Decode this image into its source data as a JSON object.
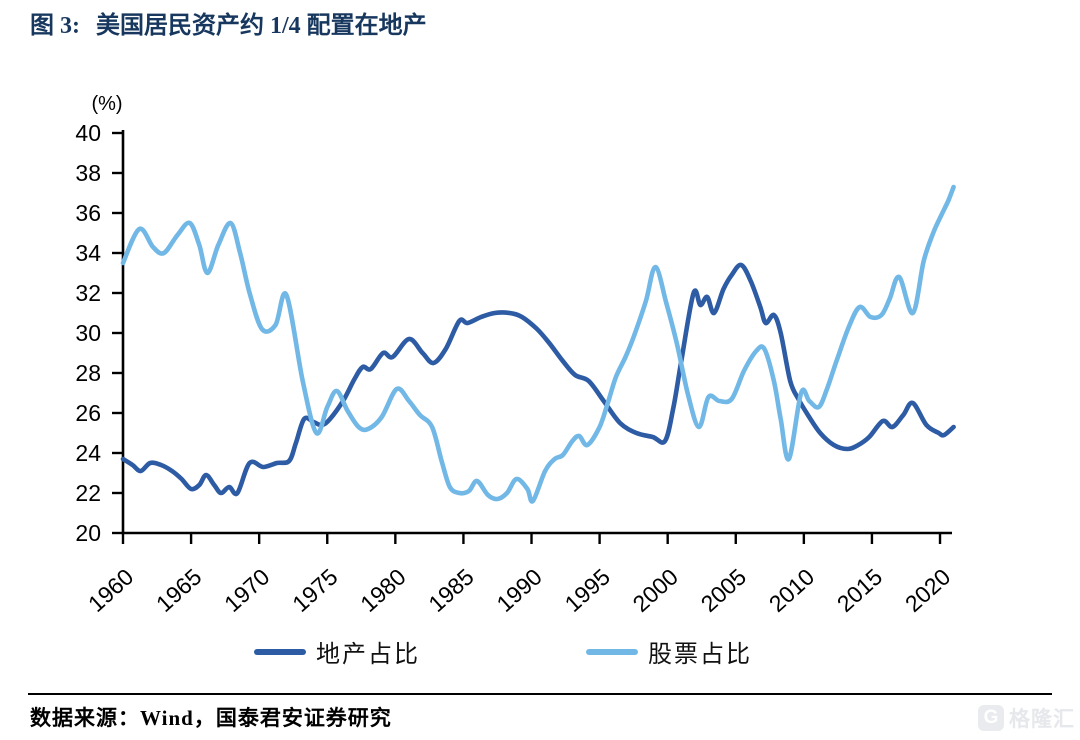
{
  "header": {
    "figure_label": "图 3:",
    "title": "美国居民资产约 1/4 配置在地产"
  },
  "footer": {
    "source": "数据来源：Wind，国泰君安证券研究",
    "watermark_icon": "G",
    "watermark": "格隆汇"
  },
  "chart_data": {
    "type": "line",
    "title": "图 3: 美国居民资产约 1/4 配置在地产",
    "unit_label": "(%)",
    "xlabel": "",
    "ylabel": "(%)",
    "x_range": [
      1960,
      2021
    ],
    "y_range": [
      20,
      40
    ],
    "x_ticks": [
      1960,
      1965,
      1970,
      1975,
      1980,
      1985,
      1990,
      1995,
      2000,
      2005,
      2010,
      2015,
      2020
    ],
    "y_ticks": [
      20,
      22,
      24,
      26,
      28,
      30,
      32,
      34,
      36,
      38,
      40
    ],
    "grid": false,
    "legend_position": "bottom",
    "series": [
      {
        "name": "地产占比",
        "color": "#2D5BA4",
        "points": [
          [
            1960.0,
            23.7
          ],
          [
            1960.7,
            23.4
          ],
          [
            1961.3,
            23.1
          ],
          [
            1962.0,
            23.5
          ],
          [
            1962.8,
            23.4
          ],
          [
            1963.6,
            23.1
          ],
          [
            1964.3,
            22.7
          ],
          [
            1965.0,
            22.2
          ],
          [
            1965.6,
            22.4
          ],
          [
            1966.1,
            22.9
          ],
          [
            1966.7,
            22.4
          ],
          [
            1967.2,
            22.0
          ],
          [
            1967.8,
            22.3
          ],
          [
            1968.4,
            22.0
          ],
          [
            1969.3,
            23.5
          ],
          [
            1970.3,
            23.3
          ],
          [
            1971.3,
            23.5
          ],
          [
            1972.2,
            23.6
          ],
          [
            1972.7,
            24.5
          ],
          [
            1973.3,
            25.7
          ],
          [
            1974.0,
            25.55
          ],
          [
            1974.6,
            25.4
          ],
          [
            1975.2,
            25.7
          ],
          [
            1976.2,
            26.65
          ],
          [
            1977.0,
            27.7
          ],
          [
            1977.6,
            28.3
          ],
          [
            1978.2,
            28.2
          ],
          [
            1979.1,
            29.0
          ],
          [
            1979.8,
            28.8
          ],
          [
            1981.0,
            29.7
          ],
          [
            1982.0,
            29.0
          ],
          [
            1982.8,
            28.5
          ],
          [
            1983.7,
            29.2
          ],
          [
            1984.7,
            30.6
          ],
          [
            1985.3,
            30.5
          ],
          [
            1986.3,
            30.8
          ],
          [
            1987.3,
            31.0
          ],
          [
            1988.4,
            31.0
          ],
          [
            1989.3,
            30.8
          ],
          [
            1990.4,
            30.2
          ],
          [
            1991.3,
            29.5
          ],
          [
            1992.3,
            28.6
          ],
          [
            1993.2,
            27.9
          ],
          [
            1994.2,
            27.6
          ],
          [
            1995.3,
            26.6
          ],
          [
            1996.5,
            25.5
          ],
          [
            1997.7,
            25.0
          ],
          [
            1998.9,
            24.8
          ],
          [
            1999.8,
            24.6
          ],
          [
            2000.4,
            26.2
          ],
          [
            2001.0,
            28.6
          ],
          [
            2001.9,
            32.0
          ],
          [
            2002.4,
            31.4
          ],
          [
            2002.9,
            31.8
          ],
          [
            2003.4,
            31.0
          ],
          [
            2004.1,
            32.2
          ],
          [
            2004.7,
            32.9
          ],
          [
            2005.4,
            33.4
          ],
          [
            2006.1,
            32.6
          ],
          [
            2006.8,
            31.3
          ],
          [
            2007.2,
            30.5
          ],
          [
            2007.8,
            30.9
          ],
          [
            2008.3,
            30.0
          ],
          [
            2009.0,
            27.6
          ],
          [
            2009.6,
            26.7
          ],
          [
            2010.3,
            25.9
          ],
          [
            2011.2,
            25.0
          ],
          [
            2012.2,
            24.4
          ],
          [
            2013.2,
            24.2
          ],
          [
            2014.0,
            24.4
          ],
          [
            2014.8,
            24.8
          ],
          [
            2015.8,
            25.6
          ],
          [
            2016.5,
            25.3
          ],
          [
            2017.3,
            25.9
          ],
          [
            2018.0,
            26.5
          ],
          [
            2019.0,
            25.4
          ],
          [
            2019.9,
            25.0
          ],
          [
            2020.3,
            24.9
          ],
          [
            2021.0,
            25.3
          ]
        ]
      },
      {
        "name": "股票占比",
        "color": "#72B8E6",
        "points": [
          [
            1960.0,
            33.5
          ],
          [
            1961.2,
            35.2
          ],
          [
            1962.2,
            34.3
          ],
          [
            1963.0,
            34.0
          ],
          [
            1964.0,
            34.9
          ],
          [
            1964.9,
            35.5
          ],
          [
            1965.6,
            34.4
          ],
          [
            1966.2,
            33.0
          ],
          [
            1967.0,
            34.4
          ],
          [
            1967.9,
            35.5
          ],
          [
            1968.6,
            34.0
          ],
          [
            1969.3,
            32.0
          ],
          [
            1970.2,
            30.2
          ],
          [
            1971.2,
            30.4
          ],
          [
            1972.0,
            31.9
          ],
          [
            1973.2,
            27.6
          ],
          [
            1974.2,
            25.0
          ],
          [
            1975.0,
            26.3
          ],
          [
            1975.7,
            27.1
          ],
          [
            1976.5,
            26.1
          ],
          [
            1977.3,
            25.3
          ],
          [
            1978.0,
            25.2
          ],
          [
            1979.0,
            25.8
          ],
          [
            1980.1,
            27.2
          ],
          [
            1981.0,
            26.6
          ],
          [
            1981.8,
            25.9
          ],
          [
            1982.7,
            25.3
          ],
          [
            1983.4,
            23.6
          ],
          [
            1984.0,
            22.3
          ],
          [
            1984.7,
            22.0
          ],
          [
            1985.4,
            22.1
          ],
          [
            1986.0,
            22.6
          ],
          [
            1986.8,
            21.9
          ],
          [
            1987.5,
            21.7
          ],
          [
            1988.2,
            22.0
          ],
          [
            1988.9,
            22.7
          ],
          [
            1989.7,
            22.2
          ],
          [
            1990.1,
            21.6
          ],
          [
            1991.0,
            23.1
          ],
          [
            1991.7,
            23.7
          ],
          [
            1992.3,
            23.9
          ],
          [
            1993.0,
            24.6
          ],
          [
            1993.5,
            24.85
          ],
          [
            1994.1,
            24.4
          ],
          [
            1995.0,
            25.3
          ],
          [
            1995.6,
            26.5
          ],
          [
            1996.2,
            27.8
          ],
          [
            1996.9,
            28.8
          ],
          [
            1997.5,
            29.8
          ],
          [
            1998.4,
            31.6
          ],
          [
            1999.1,
            33.3
          ],
          [
            1999.9,
            31.5
          ],
          [
            2000.7,
            29.4
          ],
          [
            2001.5,
            26.9
          ],
          [
            2002.3,
            25.3
          ],
          [
            2003.0,
            26.8
          ],
          [
            2003.8,
            26.6
          ],
          [
            2004.7,
            26.7
          ],
          [
            2005.6,
            28.1
          ],
          [
            2006.5,
            29.1
          ],
          [
            2007.1,
            29.2
          ],
          [
            2007.8,
            27.6
          ],
          [
            2008.3,
            25.7
          ],
          [
            2008.9,
            23.7
          ],
          [
            2009.8,
            27.0
          ],
          [
            2010.4,
            26.6
          ],
          [
            2011.1,
            26.3
          ],
          [
            2011.7,
            27.2
          ],
          [
            2012.4,
            28.6
          ],
          [
            2013.3,
            30.3
          ],
          [
            2014.1,
            31.3
          ],
          [
            2014.9,
            30.8
          ],
          [
            2015.7,
            30.9
          ],
          [
            2016.3,
            31.7
          ],
          [
            2017.0,
            32.8
          ],
          [
            2018.0,
            31.0
          ],
          [
            2018.8,
            33.6
          ],
          [
            2019.5,
            35.0
          ],
          [
            2020.1,
            35.9
          ],
          [
            2020.6,
            36.6
          ],
          [
            2021.0,
            37.3
          ]
        ]
      }
    ]
  }
}
